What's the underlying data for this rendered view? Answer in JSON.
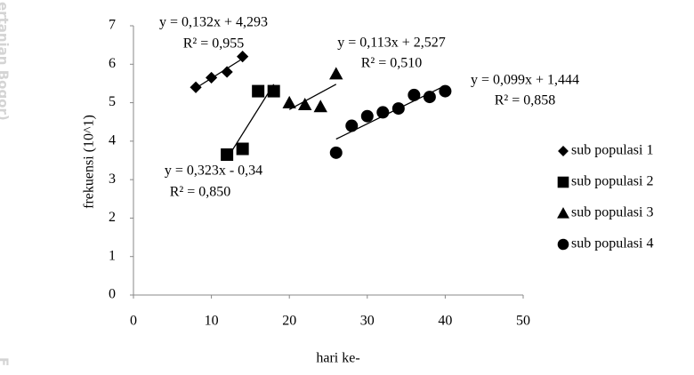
{
  "chart_data": {
    "type": "scatter",
    "xlabel": "hari ke-",
    "ylabel": "frekuensi (10^1)",
    "xlim": [
      0,
      50
    ],
    "xticks": [
      0,
      10,
      20,
      30,
      40,
      50
    ],
    "ylim": [
      0,
      7
    ],
    "yticks": [
      0,
      1,
      2,
      3,
      4,
      5,
      6,
      7
    ],
    "grid": false,
    "legend": "right",
    "trendline": true,
    "series": [
      {
        "name": "sub populasi 1",
        "color": "#000000",
        "marker": "diamond",
        "x": [
          8,
          10,
          12,
          14
        ],
        "values": [
          5.4,
          5.65,
          5.8,
          6.2
        ],
        "equation": "y = 0,132x + 4,293",
        "r2": "R² = 0,955"
      },
      {
        "name": "sub populasi 2",
        "color": "#000000",
        "marker": "square",
        "x": [
          12,
          14,
          16,
          18
        ],
        "values": [
          3.65,
          3.8,
          5.3,
          5.3
        ],
        "equation": "y = 0,323x - 0,34",
        "r2": "R² = 0,850"
      },
      {
        "name": "sub populasi 3",
        "color": "#000000",
        "marker": "triangle",
        "x": [
          20,
          22,
          24,
          26
        ],
        "values": [
          5.0,
          4.95,
          4.9,
          5.75
        ],
        "equation": "y = 0,113x + 2,527",
        "r2": "R² = 0,510"
      },
      {
        "name": "sub populasi 4",
        "color": "#000000",
        "marker": "circle",
        "x": [
          26,
          28,
          30,
          32,
          34,
          36,
          38,
          40
        ],
        "values": [
          3.7,
          4.4,
          4.65,
          4.75,
          4.85,
          5.2,
          5.15,
          5.3
        ],
        "equation": "y = 0,099x + 1,444",
        "r2": "R² = 0,858"
      }
    ]
  },
  "watermark": [
    "ertanian Bogor)",
    "F"
  ]
}
